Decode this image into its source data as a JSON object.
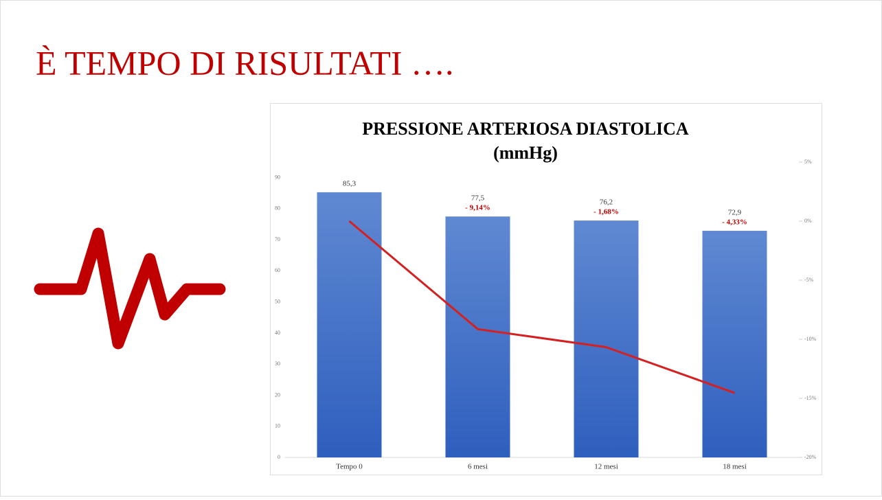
{
  "slide_title": "È TEMPO DI RISULTATI ….",
  "chart_data": {
    "type": "bar",
    "title": "PRESSIONE ARTERIOSA DIASTOLICA",
    "subtitle": "(mmHg)",
    "categories": [
      "Tempo 0",
      "6 mesi",
      "12 mesi",
      "18 mesi"
    ],
    "series": [
      {
        "color": "#3d6cc9",
        "values": [
          85.3,
          77.5,
          76.2,
          72.9
        ],
        "value_labels": [
          "85,3",
          "77,5",
          "76,2",
          "72,9"
        ]
      },
      {
        "type": "line",
        "axis": "y2",
        "color": "#d42020",
        "values": [
          0,
          -9.14,
          -10.67,
          -14.54
        ]
      }
    ],
    "change_labels": [
      null,
      "- 9,14%",
      "- 1,68%",
      "- 4,33%"
    ],
    "ylim": [
      0,
      95
    ],
    "yticks": [
      0,
      10,
      20,
      30,
      40,
      50,
      60,
      70,
      80,
      90
    ],
    "y2lim": [
      -20,
      5
    ],
    "y2ticks": [
      {
        "value": 5,
        "label": "5%"
      },
      {
        "value": 0,
        "label": "0%"
      },
      {
        "value": -5,
        "label": "-5%"
      },
      {
        "value": -10,
        "label": "-10%"
      },
      {
        "value": -15,
        "label": "-15%"
      },
      {
        "value": -20,
        "label": "-20%"
      }
    ]
  }
}
